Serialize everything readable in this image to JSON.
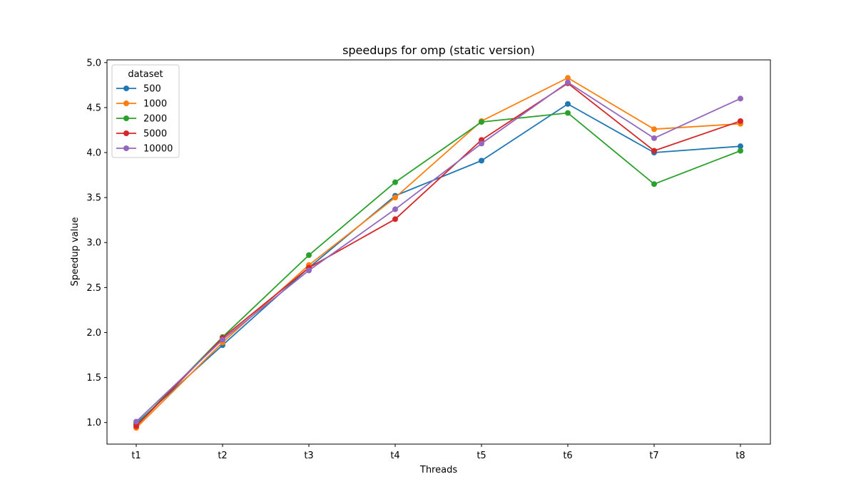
{
  "chart_data": {
    "type": "line",
    "title": "speedups for omp (static version)",
    "xlabel": "Threads",
    "ylabel": "Speedup value",
    "categories": [
      "t1",
      "t2",
      "t3",
      "t4",
      "t5",
      "t6",
      "t7",
      "t8"
    ],
    "ylim": [
      0.76,
      5.03
    ],
    "yticks": [
      1.0,
      1.5,
      2.0,
      2.5,
      3.0,
      3.5,
      4.0,
      4.5,
      5.0
    ],
    "grid": false,
    "legend": {
      "title": "dataset",
      "position": "top-left"
    },
    "series": [
      {
        "name": "500",
        "color": "#1f77b4",
        "values": [
          0.99,
          1.86,
          2.72,
          3.52,
          3.91,
          4.54,
          4.0,
          4.07
        ]
      },
      {
        "name": "1000",
        "color": "#ff7f0e",
        "values": [
          0.94,
          1.89,
          2.75,
          3.5,
          4.35,
          4.83,
          4.26,
          4.32
        ]
      },
      {
        "name": "2000",
        "color": "#2ca02c",
        "values": [
          0.97,
          1.95,
          2.86,
          3.67,
          4.34,
          4.44,
          3.65,
          4.02
        ]
      },
      {
        "name": "5000",
        "color": "#d62728",
        "values": [
          0.96,
          1.94,
          2.72,
          3.26,
          4.14,
          4.77,
          4.02,
          4.35
        ]
      },
      {
        "name": "10000",
        "color": "#9467bd",
        "values": [
          1.01,
          1.92,
          2.69,
          3.37,
          4.1,
          4.78,
          4.16,
          4.6
        ]
      }
    ]
  }
}
